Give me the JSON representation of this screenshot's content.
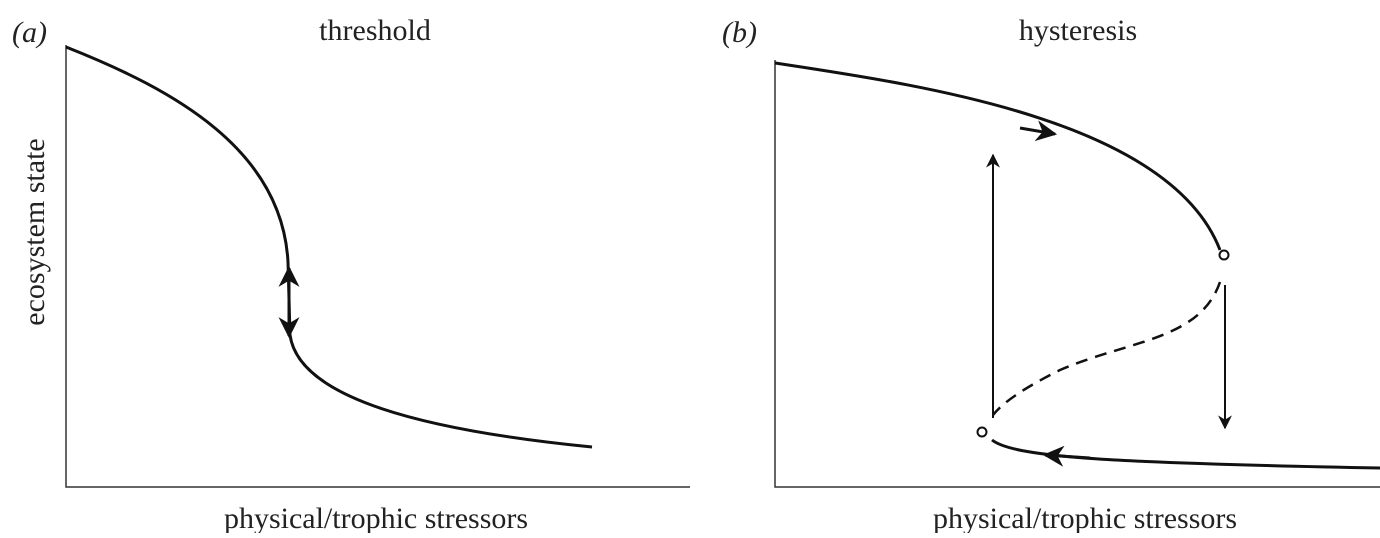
{
  "panels": [
    {
      "label": "(a)",
      "title": "threshold",
      "y_label": "ecosystem state",
      "x_label": "physical/trophic stressors"
    },
    {
      "label": "(b)",
      "title": "hysteresis",
      "x_label": "physical/trophic stressors"
    }
  ]
}
